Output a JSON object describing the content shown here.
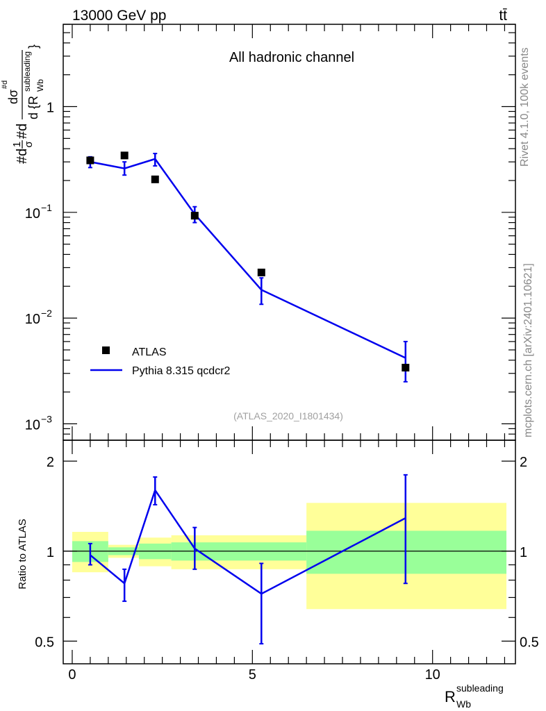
{
  "header": {
    "energy_label": "13000 GeV pp",
    "process_label": "tt̄"
  },
  "chart_data": [
    {
      "type": "line",
      "panel": "main",
      "title": "All hadronic channel",
      "analysis_label": "(ATLAS_2020_I1801434)",
      "ylabel": {
        "pre": "#d",
        "frac_num": "1",
        "frac_den": "σ",
        "mid": "#d",
        "big_num": "dσ",
        "big_num_sup": "#d",
        "den_pre": "d {R",
        "den_sub": "Wb",
        "den_sup": "subleading",
        "den_post": "}"
      },
      "yscale": "log",
      "ylim": [
        0.0007,
        6
      ],
      "xlim": [
        -0.25,
        12.3
      ],
      "y_ticks": [
        {
          "v": 0.001,
          "base": "10",
          "exp": "−3"
        },
        {
          "v": 0.01,
          "base": "10",
          "exp": "−2"
        },
        {
          "v": 0.1,
          "base": "10",
          "exp": "−1"
        },
        {
          "v": 1,
          "base": "1",
          "exp": ""
        }
      ],
      "series": [
        {
          "name": "ATLAS",
          "style": "markers",
          "color": "#000000",
          "x": [
            0.5,
            1.45,
            2.3,
            3.4,
            5.25,
            9.25
          ],
          "y": [
            0.31,
            0.345,
            0.205,
            0.093,
            0.027,
            0.0034
          ]
        },
        {
          "name": "Pythia 8.315 qcdcr2",
          "style": "line",
          "color": "#0000ee",
          "x": [
            0.5,
            1.45,
            2.3,
            3.4,
            5.25,
            9.25
          ],
          "y": [
            0.3,
            0.26,
            0.32,
            0.096,
            0.0185,
            0.0042
          ],
          "err_lo": [
            0.265,
            0.225,
            0.275,
            0.08,
            0.0135,
            0.0025
          ],
          "err_hi": [
            0.335,
            0.3,
            0.36,
            0.113,
            0.024,
            0.006
          ]
        }
      ],
      "legend_position": "bottom-left"
    },
    {
      "type": "line",
      "panel": "ratio",
      "ylabel": "Ratio to ATLAS",
      "xlabel": {
        "main": "R",
        "sub": "Wb",
        "sup": "subleading"
      },
      "yscale": "log",
      "ylim": [
        0.42,
        2.35
      ],
      "xlim": [
        -0.25,
        12.3
      ],
      "x_ticks": [
        0,
        5,
        10
      ],
      "y_ticks": [
        0.5,
        1,
        2
      ],
      "reference_line": 1,
      "bands": [
        {
          "x0": 0,
          "x1": 1.0,
          "yellow": [
            0.85,
            1.16
          ],
          "green": [
            0.92,
            1.08
          ]
        },
        {
          "x0": 1.0,
          "x1": 1.85,
          "yellow": [
            0.95,
            1.05
          ],
          "green": [
            0.97,
            1.03
          ]
        },
        {
          "x0": 1.85,
          "x1": 2.75,
          "yellow": [
            0.89,
            1.11
          ],
          "green": [
            0.94,
            1.06
          ]
        },
        {
          "x0": 2.75,
          "x1": 6.5,
          "yellow": [
            0.87,
            1.13
          ],
          "green": [
            0.93,
            1.07
          ]
        },
        {
          "x0": 6.5,
          "x1": 12.05,
          "yellow": [
            0.64,
            1.45
          ],
          "green": [
            0.84,
            1.17
          ]
        }
      ],
      "series": [
        {
          "name": "Pythia 8.315 qcdcr2",
          "color": "#0000ee",
          "x": [
            0.5,
            1.45,
            2.3,
            3.4,
            5.25,
            9.25
          ],
          "y": [
            0.97,
            0.78,
            1.6,
            1.02,
            0.72,
            1.29
          ],
          "err_lo": [
            0.9,
            0.68,
            1.43,
            0.87,
            0.49,
            0.78
          ],
          "err_hi": [
            1.06,
            0.87,
            1.77,
            1.2,
            0.91,
            1.8
          ]
        }
      ]
    }
  ],
  "side_labels": {
    "rivet": "Rivet 4.1.0,  100k events",
    "mcplots": "mcplots.cern.ch [arXiv:2401.10621]"
  }
}
